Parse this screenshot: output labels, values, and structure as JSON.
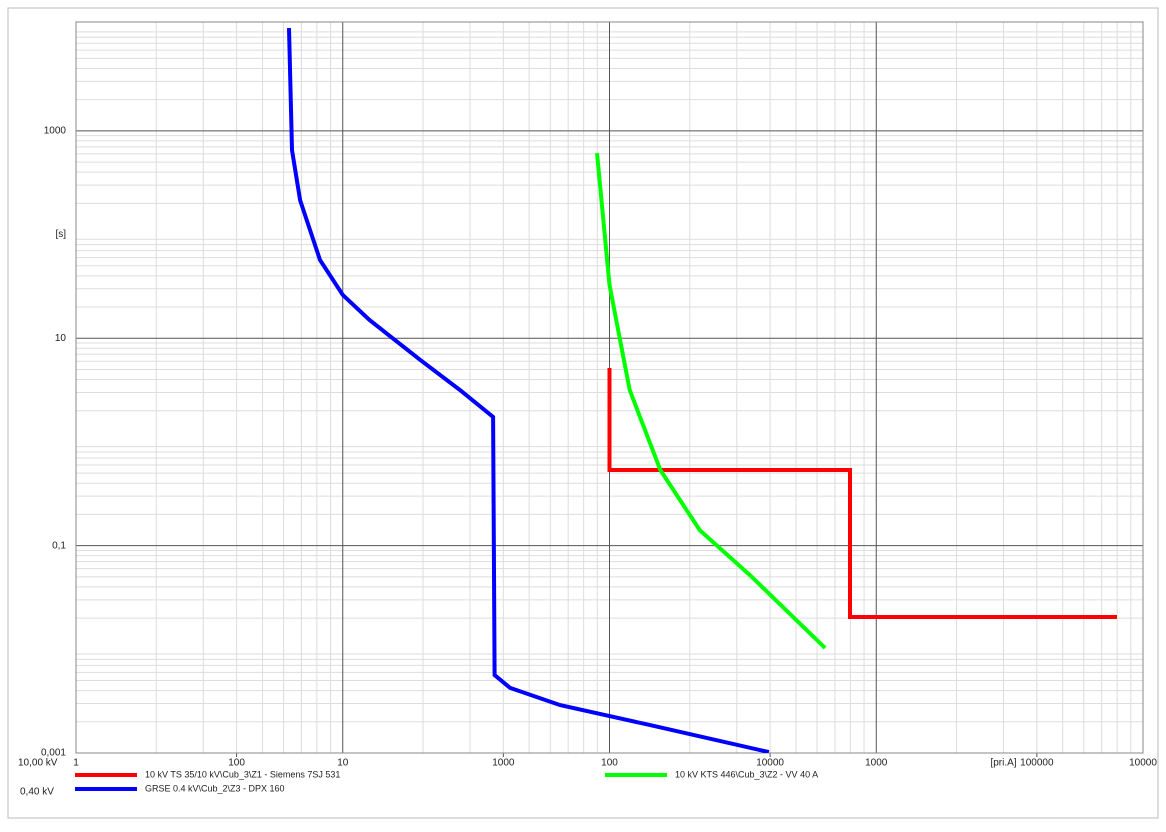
{
  "chart_data": {
    "type": "line",
    "xlabel": "10,00 kV",
    "x2label": "0,40 kV",
    "xscale": "log",
    "yscale": "log",
    "grid": true,
    "minor_grid": true,
    "xlim": [
      1,
      10000
    ],
    "x2lim": [
      25,
      250000
    ],
    "ylim": [
      0.001,
      11220
    ],
    "xticks": [
      1,
      10,
      100,
      1000,
      10000,
      {
        "value": 3000,
        "label": "[pri.A]"
      }
    ],
    "x2ticks": [
      100,
      1000,
      10000,
      100000
    ],
    "yticks": [
      {
        "value": 0.001,
        "label": "0,001"
      },
      {
        "value": 0.1,
        "label": "0,1"
      },
      10,
      1000,
      {
        "value": 100,
        "label": "[s]"
      }
    ],
    "series": [
      {
        "name": "10 kV TS 35/10 kV\\Cub_3\\Z1 - Siemens 7SJ 531",
        "color": "#ff0000",
        "x": [
          100,
          100,
          797,
          797,
          7990
        ],
        "values": [
          5.16,
          0.536,
          0.536,
          0.0205,
          0.0205
        ]
      },
      {
        "name": "10 kV KTS 446\\Cub_3\\Z2 - VV 40 A",
        "color": "#00ff00",
        "x": [
          89.8,
          100,
          119,
          155,
          218,
          336,
          643
        ],
        "values": [
          611,
          32.6,
          3.17,
          0.536,
          0.141,
          0.052,
          0.0103
        ]
      },
      {
        "name": "GRSE 0.4 kV\\Cub_2\\Z3 - DPX 160",
        "color": "#0000ff",
        "x": [
          6.29,
          6.45,
          6.92,
          8.22,
          10,
          12.6,
          19.5,
          27.5,
          36.6,
          37.1,
          42.4,
          65.3,
          142,
          396
        ],
        "values": [
          9800,
          653,
          215,
          56.8,
          26.1,
          15,
          6.2,
          3.17,
          1.74,
          0.00565,
          0.00424,
          0.0029,
          0.00186,
          0.00102
        ]
      }
    ]
  }
}
